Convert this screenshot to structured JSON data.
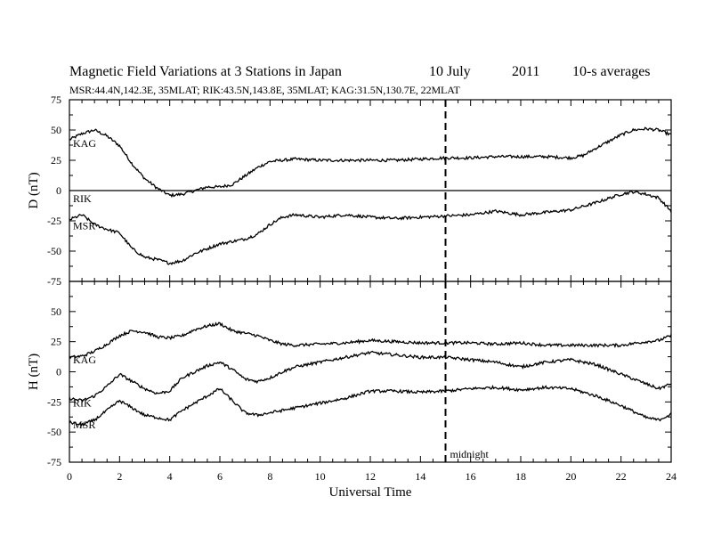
{
  "header": {
    "title": "Magnetic Field Variations at 3 Stations in Japan",
    "date": "10 July",
    "year": "2011",
    "averaging": "10-s averages",
    "stations_line": "MSR:44.4N,142.3E, 35MLAT;  RIK:43.5N,143.8E, 35MLAT;  KAG:31.5N,130.7E, 22MLAT"
  },
  "chart_data": [
    {
      "panel": "D",
      "type": "line",
      "ylabel": "D (nT)",
      "xlabel": "Universal Time",
      "xlim": [
        0,
        24
      ],
      "ylim": [
        -75,
        75
      ],
      "yticks": [
        75,
        50,
        25,
        0,
        -25,
        -50,
        -75
      ],
      "annotation": "midnight",
      "midnight_ut": 15,
      "series": [
        {
          "name": "KAG",
          "color": "#000000",
          "x": [
            0,
            0.5,
            1,
            1.5,
            2,
            2.5,
            3,
            3.5,
            4,
            4.5,
            5,
            5.5,
            6,
            6.5,
            7,
            7.5,
            8,
            8.5,
            9,
            10,
            11,
            12,
            13,
            14,
            15,
            16,
            17,
            18,
            19,
            20,
            20.5,
            21,
            22,
            22.5,
            23,
            23.5,
            24
          ],
          "y": [
            42,
            47,
            50,
            45,
            37,
            22,
            10,
            2,
            -4,
            -3,
            0,
            3,
            3,
            5,
            12,
            19,
            24,
            25,
            26,
            25,
            25,
            25,
            25,
            26,
            27,
            27,
            28,
            28,
            28,
            27,
            29,
            35,
            46,
            50,
            51,
            50,
            46
          ]
        },
        {
          "name": "RIK",
          "color": "#000000",
          "x": [
            0,
            24
          ],
          "y": [
            0,
            0
          ]
        },
        {
          "name": "MSR",
          "color": "#000000",
          "x": [
            0,
            0.5,
            1,
            1.5,
            2,
            2.5,
            3,
            3.5,
            4,
            4.5,
            5,
            5.5,
            6,
            6.5,
            7,
            7.5,
            8,
            8.5,
            9,
            10,
            11,
            12,
            13,
            14,
            15,
            16,
            17,
            18,
            19,
            20,
            21,
            22,
            22.5,
            23,
            23.5,
            24
          ],
          "y": [
            -24,
            -20,
            -28,
            -32,
            -35,
            -48,
            -55,
            -57,
            -60,
            -58,
            -52,
            -48,
            -44,
            -42,
            -40,
            -36,
            -28,
            -22,
            -20,
            -22,
            -20,
            -22,
            -23,
            -22,
            -21,
            -20,
            -17,
            -20,
            -18,
            -16,
            -10,
            -3,
            -1,
            -3,
            -6,
            -17
          ]
        }
      ]
    },
    {
      "panel": "H",
      "type": "line",
      "ylabel": "H (nT)",
      "xlabel": "Universal Time",
      "xlim": [
        0,
        24
      ],
      "ylim": [
        -75,
        75
      ],
      "yticks": [
        75,
        50,
        25,
        0,
        -25,
        -50,
        -75
      ],
      "xticks": [
        0,
        2,
        4,
        6,
        8,
        10,
        12,
        14,
        16,
        18,
        20,
        22,
        24
      ],
      "annotation": "midnight",
      "midnight_ut": 15,
      "series": [
        {
          "name": "KAG",
          "color": "#000000",
          "x": [
            0,
            0.5,
            1,
            1.5,
            2,
            2.5,
            3,
            3.5,
            4,
            4.5,
            5,
            5.5,
            6,
            6.5,
            7,
            7.5,
            8,
            8.5,
            9,
            10,
            11,
            12,
            13,
            14,
            15,
            16,
            17,
            18,
            19,
            20,
            21,
            22,
            23,
            23.5,
            24
          ],
          "y": [
            12,
            13,
            17,
            23,
            30,
            34,
            33,
            29,
            28,
            30,
            35,
            38,
            40,
            34,
            32,
            30,
            26,
            23,
            22,
            23,
            24,
            26,
            25,
            24,
            24,
            24,
            23,
            24,
            22,
            22,
            22,
            22,
            25,
            26,
            30
          ]
        },
        {
          "name": "RIK",
          "color": "#000000",
          "x": [
            0,
            0.5,
            1,
            1.5,
            2,
            2.5,
            3,
            3.5,
            4,
            4.5,
            5,
            5.5,
            6,
            6.5,
            7,
            7.5,
            8,
            8.5,
            9,
            10,
            11,
            12,
            13,
            14,
            15,
            16,
            17,
            18,
            19,
            20,
            21,
            22,
            23,
            23.5,
            24
          ],
          "y": [
            -22,
            -24,
            -20,
            -12,
            -2,
            -8,
            -14,
            -18,
            -16,
            -5,
            0,
            5,
            8,
            2,
            -6,
            -8,
            -5,
            0,
            4,
            8,
            12,
            16,
            14,
            12,
            12,
            10,
            8,
            4,
            8,
            10,
            6,
            -2,
            -10,
            -14,
            -10
          ]
        },
        {
          "name": "MSR",
          "color": "#000000",
          "x": [
            0,
            0.5,
            1,
            1.5,
            2,
            2.5,
            3,
            3.5,
            4,
            4.5,
            5,
            5.5,
            6,
            6.5,
            7,
            7.5,
            8,
            8.5,
            9,
            10,
            11,
            12,
            13,
            14,
            15,
            16,
            17,
            18,
            19,
            20,
            21,
            22,
            23,
            23.5,
            24
          ],
          "y": [
            -42,
            -44,
            -40,
            -32,
            -24,
            -30,
            -36,
            -38,
            -40,
            -32,
            -26,
            -20,
            -14,
            -24,
            -34,
            -36,
            -34,
            -32,
            -30,
            -26,
            -22,
            -16,
            -16,
            -17,
            -16,
            -14,
            -13,
            -15,
            -13,
            -14,
            -20,
            -28,
            -38,
            -40,
            -35
          ]
        }
      ]
    }
  ],
  "axes": {
    "x_tick_labels": [
      "0",
      "2",
      "4",
      "6",
      "8",
      "10",
      "12",
      "14",
      "16",
      "18",
      "20",
      "22",
      "24"
    ],
    "y_tick_labels": [
      "75",
      "50",
      "25",
      "0",
      "-25",
      "-50",
      "-75"
    ]
  }
}
